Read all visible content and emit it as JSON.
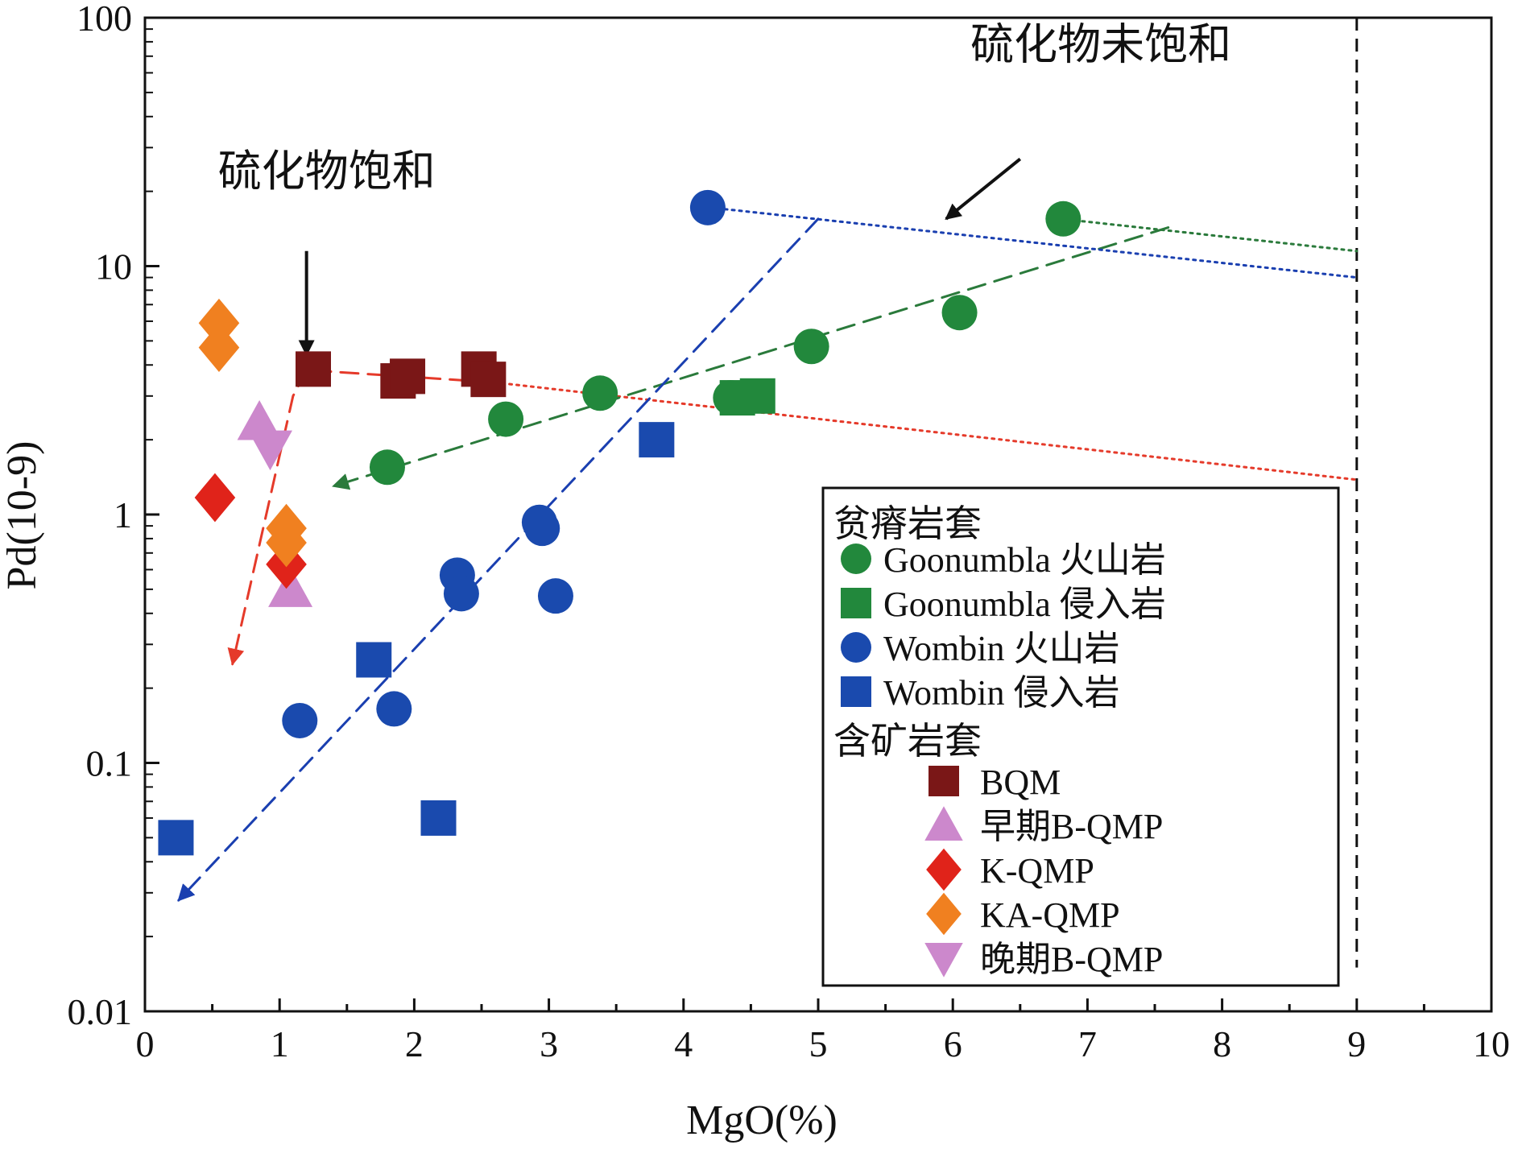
{
  "chart_data": {
    "type": "scatter",
    "xlabel": "MgO(%)",
    "ylabel": "Pd(10-9)",
    "xlim": [
      0,
      10
    ],
    "ylim": [
      0.01,
      100
    ],
    "yscale": "log",
    "xticks": [
      "0",
      "1",
      "2",
      "3",
      "4",
      "5",
      "6",
      "7",
      "8",
      "9",
      "10"
    ],
    "yticks": [
      {
        "v": 0.01,
        "label": "0.01"
      },
      {
        "v": 0.1,
        "label": "0.1"
      },
      {
        "v": 1,
        "label": "1"
      },
      {
        "v": 10,
        "label": "10"
      },
      {
        "v": 100,
        "label": "100"
      }
    ],
    "grid": false,
    "legend_position": "bottom-right",
    "legend_groups": [
      "贫瘠岩套",
      "含矿岩套"
    ],
    "annotations": [
      {
        "text": "硫化物饱和",
        "x": 1.35,
        "y": 21
      },
      {
        "text": "硫化物未饱和",
        "x": 7.1,
        "y": 68
      }
    ],
    "arrows": [
      {
        "from": [
          1.2,
          11.5
        ],
        "to": [
          1.2,
          4.4
        ],
        "color": "#111111"
      },
      {
        "from": [
          6.5,
          27
        ],
        "to": [
          5.95,
          15.5
        ],
        "color": "#111111"
      }
    ],
    "trend_lines": [
      {
        "color": "#e53a2a",
        "style": "dashed",
        "points": [
          [
            1.25,
            3.8
          ],
          [
            2.6,
            3.4
          ]
        ]
      },
      {
        "color": "#e53a2a",
        "style": "dotted",
        "points": [
          [
            2.6,
            3.4
          ],
          [
            9.0,
            1.38
          ]
        ]
      },
      {
        "color": "#e53a2a",
        "style": "dashed",
        "arrow_end": true,
        "points": [
          [
            1.2,
            3.8
          ],
          [
            1.1,
            3.0
          ],
          [
            0.65,
            0.25
          ]
        ]
      },
      {
        "color": "#2a7a3b",
        "style": "dashed",
        "arrow_end": true,
        "points": [
          [
            7.6,
            14.3
          ],
          [
            1.4,
            1.3
          ]
        ]
      },
      {
        "color": "#2a7a3b",
        "style": "dotted",
        "points": [
          [
            6.8,
            15.5
          ],
          [
            9.0,
            11.5
          ]
        ]
      },
      {
        "color": "#1a3fb0",
        "style": "dashed",
        "arrow_end": true,
        "points": [
          [
            5.0,
            15.5
          ],
          [
            0.25,
            0.028
          ]
        ]
      },
      {
        "color": "#1a3fb0",
        "style": "dotted",
        "points": [
          [
            4.2,
            17.2
          ],
          [
            9.0,
            9.0
          ]
        ]
      }
    ],
    "reference_line": {
      "x": 9,
      "style": "dashed",
      "color": "#111111",
      "y_range": [
        0.015,
        100
      ]
    },
    "series": [
      {
        "name": "Goonumbla 火山岩",
        "marker": "circle",
        "color": "#22883c",
        "group": 0,
        "x": [
          1.8,
          2.68,
          3.38,
          4.35,
          4.95,
          6.05,
          6.82
        ],
        "y": [
          1.55,
          2.42,
          3.08,
          2.95,
          4.75,
          6.5,
          15.5
        ]
      },
      {
        "name": "Goonumbla 侵入岩",
        "marker": "square",
        "color": "#22883c",
        "group": 0,
        "x": [
          4.4,
          4.55
        ],
        "y": [
          2.95,
          3.0
        ]
      },
      {
        "name": "Wombin 火山岩",
        "marker": "circle",
        "color": "#1a4aae",
        "group": 0,
        "x": [
          1.15,
          1.85,
          2.32,
          2.35,
          2.93,
          2.95,
          3.05,
          4.18
        ],
        "y": [
          0.148,
          0.165,
          0.57,
          0.48,
          0.93,
          0.88,
          0.47,
          17.2
        ]
      },
      {
        "name": "Wombin 侵入岩",
        "marker": "square",
        "color": "#1a4aae",
        "group": 0,
        "x": [
          0.23,
          1.7,
          2.18,
          3.8
        ],
        "y": [
          0.05,
          0.26,
          0.06,
          2.0
        ]
      },
      {
        "name": "BQM",
        "marker": "square",
        "color": "#7a1717",
        "group": 1,
        "x": [
          1.25,
          1.88,
          1.95,
          2.48,
          2.55
        ],
        "y": [
          3.85,
          3.45,
          3.6,
          3.85,
          3.5
        ]
      },
      {
        "name": "早期B-QMP",
        "marker": "triangle-up",
        "color": "#cc88cc",
        "group": 1,
        "x": [
          0.85,
          1.08
        ],
        "y": [
          2.35,
          0.5
        ]
      },
      {
        "name": "K-QMP",
        "marker": "diamond",
        "color": "#e0231a",
        "group": 1,
        "x": [
          0.52,
          1.05
        ],
        "y": [
          1.17,
          0.63
        ]
      },
      {
        "name": "KA-QMP",
        "marker": "diamond",
        "color": "#f08020",
        "group": 1,
        "x": [
          0.55,
          0.55,
          1.05,
          1.05
        ],
        "y": [
          5.9,
          4.7,
          0.88,
          0.77
        ]
      },
      {
        "name": "晚期B-QMP",
        "marker": "triangle-down",
        "color": "#cc88cc",
        "group": 1,
        "x": [
          0.93
        ],
        "y": [
          1.85
        ]
      }
    ]
  }
}
